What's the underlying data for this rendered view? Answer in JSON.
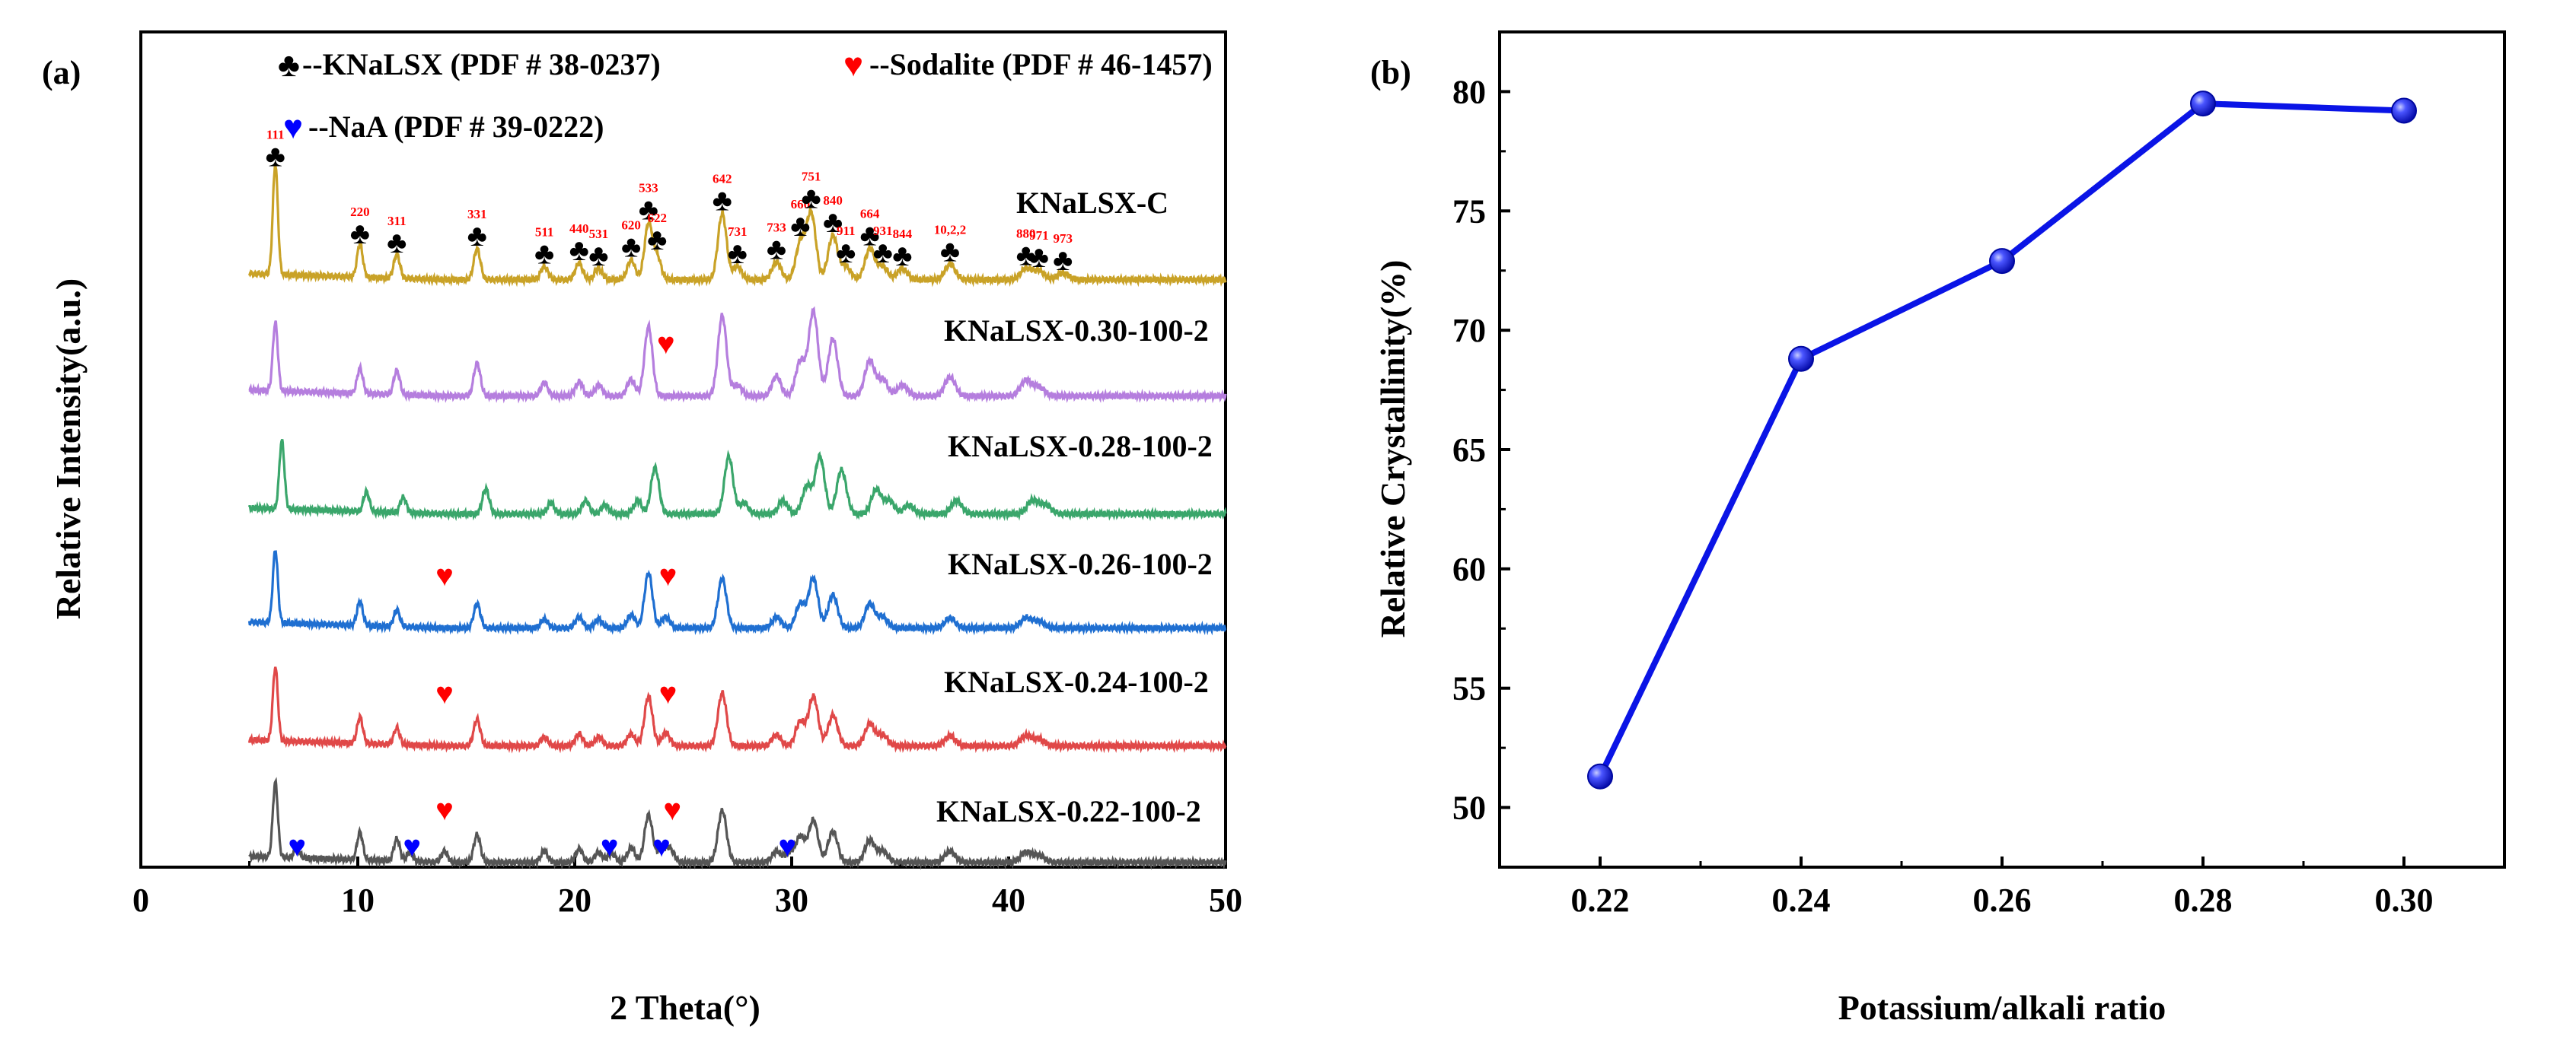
{
  "chart_data": [
    {
      "type": "line",
      "panel_label": "(a)",
      "xlabel": "2 Theta(°)",
      "ylabel": "Relative Intensity(a.u.)",
      "xlim": [
        0,
        50
      ],
      "x_ticks": [
        0,
        10,
        20,
        30,
        40,
        50
      ],
      "legend": [
        {
          "symbol": "♣",
          "color": "#000000",
          "text": "--KNaLSX (PDF # 38-0237)"
        },
        {
          "symbol": "♥",
          "color": "#ff0000",
          "text": "--Sodalite (PDF # 46-1457)"
        },
        {
          "symbol": "♥",
          "color": "#0000ff",
          "text": "--NaA (PDF # 39-0222)"
        }
      ],
      "series": [
        {
          "name": "KNaLSX-C",
          "color": "#c9a227",
          "peaks": [
            [
              6.2,
              100
            ],
            [
              10.1,
              30
            ],
            [
              11.8,
              22
            ],
            [
              15.5,
              28
            ],
            [
              18.6,
              12
            ],
            [
              20.2,
              15
            ],
            [
              21.1,
              10
            ],
            [
              22.6,
              18
            ],
            [
              23.4,
              50
            ],
            [
              23.8,
              20
            ],
            [
              26.8,
              60
            ],
            [
              27.5,
              12
            ],
            [
              29.3,
              16
            ],
            [
              30.4,
              33
            ],
            [
              30.9,
              60
            ],
            [
              31.9,
              40
            ],
            [
              32.5,
              12
            ],
            [
              33.6,
              28
            ],
            [
              34.2,
              12
            ],
            [
              35.1,
              10
            ],
            [
              37.3,
              14
            ],
            [
              40.8,
              10
            ],
            [
              41.4,
              8
            ],
            [
              42.5,
              6
            ]
          ],
          "reflections": [
            {
              "hkl": "111",
              "x": 6.2
            },
            {
              "hkl": "220",
              "x": 10.1
            },
            {
              "hkl": "311",
              "x": 11.8
            },
            {
              "hkl": "331",
              "x": 15.5
            },
            {
              "hkl": "511",
              "x": 18.6
            },
            {
              "hkl": "440",
              "x": 20.2
            },
            {
              "hkl": "531",
              "x": 21.1
            },
            {
              "hkl": "620",
              "x": 22.6
            },
            {
              "hkl": "533",
              "x": 23.4
            },
            {
              "hkl": "622",
              "x": 23.8
            },
            {
              "hkl": "642",
              "x": 26.8
            },
            {
              "hkl": "731",
              "x": 27.5
            },
            {
              "hkl": "733",
              "x": 29.3
            },
            {
              "hkl": "660",
              "x": 30.4
            },
            {
              "hkl": "751",
              "x": 30.9
            },
            {
              "hkl": "840",
              "x": 31.9
            },
            {
              "hkl": "911",
              "x": 32.5
            },
            {
              "hkl": "664",
              "x": 33.6
            },
            {
              "hkl": "931",
              "x": 34.2
            },
            {
              "hkl": "844",
              "x": 35.1
            },
            {
              "hkl": "10,2,2",
              "x": 37.3
            },
            {
              "hkl": "880",
              "x": 40.8
            },
            {
              "hkl": "971",
              "x": 41.4
            },
            {
              "hkl": "973",
              "x": 42.5
            }
          ]
        },
        {
          "name": "KNaLSX-0.30-100-2",
          "color": "#b57ede",
          "peaks": [
            [
              6.2,
              62
            ],
            [
              10.1,
              23
            ],
            [
              11.8,
              22
            ],
            [
              15.5,
              30
            ],
            [
              18.6,
              12
            ],
            [
              20.2,
              13
            ],
            [
              21.1,
              10
            ],
            [
              22.6,
              15
            ],
            [
              23.4,
              63
            ],
            [
              26.8,
              73
            ],
            [
              27.5,
              10
            ],
            [
              29.3,
              18
            ],
            [
              30.4,
              32
            ],
            [
              31.0,
              77
            ],
            [
              31.9,
              52
            ],
            [
              33.6,
              32
            ],
            [
              34.2,
              15
            ],
            [
              35.1,
              10
            ],
            [
              37.3,
              17
            ],
            [
              40.8,
              14
            ],
            [
              41.4,
              8
            ]
          ],
          "markers": [
            {
              "type": "sodalite",
              "x": 24.2
            }
          ]
        },
        {
          "name": "KNaLSX-0.28-100-2",
          "color": "#3aa66b",
          "peaks": [
            [
              6.5,
              62
            ],
            [
              10.4,
              18
            ],
            [
              12.1,
              14
            ],
            [
              15.9,
              23
            ],
            [
              18.9,
              10
            ],
            [
              20.5,
              12
            ],
            [
              21.4,
              8
            ],
            [
              22.9,
              12
            ],
            [
              23.7,
              42
            ],
            [
              27.1,
              52
            ],
            [
              27.8,
              10
            ],
            [
              29.6,
              12
            ],
            [
              30.7,
              25
            ],
            [
              31.3,
              52
            ],
            [
              32.3,
              40
            ],
            [
              33.9,
              22
            ],
            [
              34.5,
              12
            ],
            [
              35.4,
              8
            ],
            [
              37.6,
              12
            ],
            [
              41.1,
              12
            ],
            [
              41.7,
              8
            ]
          ],
          "markers": []
        },
        {
          "name": "KNaLSX-0.26-100-2",
          "color": "#1f6fd1",
          "peaks": [
            [
              6.2,
              66
            ],
            [
              10.1,
              22
            ],
            [
              11.8,
              15
            ],
            [
              15.5,
              22
            ],
            [
              18.6,
              8
            ],
            [
              20.2,
              10
            ],
            [
              21.1,
              8
            ],
            [
              22.6,
              12
            ],
            [
              23.4,
              50
            ],
            [
              24.2,
              10
            ],
            [
              26.8,
              45
            ],
            [
              29.3,
              10
            ],
            [
              30.4,
              22
            ],
            [
              31.0,
              45
            ],
            [
              31.9,
              30
            ],
            [
              33.6,
              22
            ],
            [
              34.2,
              10
            ],
            [
              37.3,
              9
            ],
            [
              40.8,
              9
            ],
            [
              41.4,
              6
            ]
          ],
          "markers": [
            {
              "type": "sodalite",
              "x": 14.0
            },
            {
              "type": "sodalite",
              "x": 24.3
            }
          ]
        },
        {
          "name": "KNaLSX-0.24-100-2",
          "color": "#e04848",
          "peaks": [
            [
              6.2,
              67
            ],
            [
              10.1,
              24
            ],
            [
              11.8,
              15
            ],
            [
              15.5,
              24
            ],
            [
              18.6,
              8
            ],
            [
              20.2,
              11
            ],
            [
              21.1,
              8
            ],
            [
              22.6,
              11
            ],
            [
              23.4,
              45
            ],
            [
              24.2,
              12
            ],
            [
              26.8,
              48
            ],
            [
              29.3,
              10
            ],
            [
              30.4,
              22
            ],
            [
              31.0,
              45
            ],
            [
              31.9,
              28
            ],
            [
              33.6,
              20
            ],
            [
              34.2,
              10
            ],
            [
              37.3,
              9
            ],
            [
              40.8,
              9
            ],
            [
              41.4,
              6
            ]
          ],
          "markers": [
            {
              "type": "sodalite",
              "x": 14.0
            },
            {
              "type": "sodalite",
              "x": 24.3
            }
          ]
        },
        {
          "name": "KNaLSX-0.22-100-2",
          "color": "#555555",
          "peaks": [
            [
              6.2,
              68
            ],
            [
              7.2,
              10
            ],
            [
              10.1,
              25
            ],
            [
              11.8,
              20
            ],
            [
              12.4,
              8
            ],
            [
              14.0,
              10
            ],
            [
              15.5,
              25
            ],
            [
              18.6,
              10
            ],
            [
              20.2,
              12
            ],
            [
              21.1,
              9
            ],
            [
              21.7,
              8
            ],
            [
              22.6,
              13
            ],
            [
              23.4,
              43
            ],
            [
              24.0,
              12
            ],
            [
              24.4,
              12
            ],
            [
              26.8,
              47
            ],
            [
              29.3,
              10
            ],
            [
              29.9,
              8
            ],
            [
              30.4,
              23
            ],
            [
              31.0,
              38
            ],
            [
              31.9,
              28
            ],
            [
              33.6,
              20
            ],
            [
              34.2,
              10
            ],
            [
              37.3,
              10
            ],
            [
              40.8,
              9
            ],
            [
              41.4,
              6
            ]
          ],
          "markers": [
            {
              "type": "naa",
              "x": 7.2
            },
            {
              "type": "naa",
              "x": 12.5
            },
            {
              "type": "sodalite",
              "x": 14.0
            },
            {
              "type": "naa",
              "x": 21.6
            },
            {
              "type": "naa",
              "x": 24.0
            },
            {
              "type": "sodalite",
              "x": 24.5
            },
            {
              "type": "naa",
              "x": 29.8
            }
          ]
        }
      ]
    },
    {
      "type": "line",
      "panel_label": "(b)",
      "xlabel": "Potassium/alkali ratio",
      "ylabel": "Relative Crystallinity(%)",
      "xlim": [
        0.21,
        0.31
      ],
      "ylim": [
        47.5,
        82.5
      ],
      "x_ticks": [
        "0.22",
        "0.24",
        "0.26",
        "0.28",
        "0.30"
      ],
      "y_ticks": [
        "50",
        "55",
        "60",
        "65",
        "70",
        "75",
        "80"
      ],
      "x": [
        0.22,
        0.24,
        0.26,
        0.28,
        0.3
      ],
      "values": [
        51.3,
        68.8,
        72.9,
        79.5,
        79.2
      ],
      "color": "#0a14e6"
    }
  ]
}
